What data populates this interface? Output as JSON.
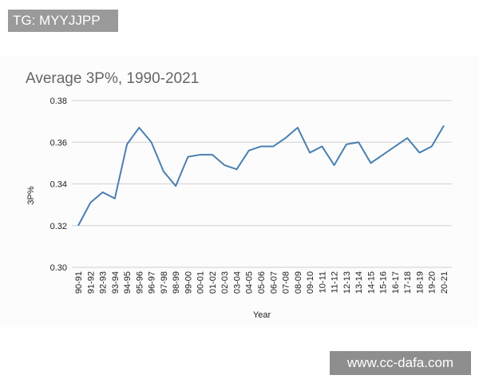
{
  "watermarks": {
    "top_left": "TG: MYYJJPP",
    "bottom_right": "www.cc-dafa.com"
  },
  "colors": {
    "line": "#4a7fb0",
    "grid": "#d0d0d0",
    "title": "#666666"
  },
  "chart_data": {
    "type": "line",
    "title": "Average 3P%, 1990-2021",
    "xlabel": "Year",
    "ylabel": "3P%",
    "ylim": [
      0.3,
      0.38
    ],
    "yticks": [
      "0.30",
      "0.32",
      "0.34",
      "0.36",
      "0.38"
    ],
    "grid": true,
    "categories": [
      "90-91",
      "91-92",
      "92-93",
      "93-94",
      "94-95",
      "95-96",
      "96-97",
      "97-98",
      "98-99",
      "99-00",
      "00-01",
      "01-02",
      "02-03",
      "03-04",
      "04-05",
      "05-06",
      "06-07",
      "07-08",
      "08-09",
      "09-10",
      "10-11",
      "11-12",
      "12-13",
      "13-14",
      "14-15",
      "15-16",
      "16-17",
      "17-18",
      "18-19",
      "19-20",
      "20-21"
    ],
    "series": [
      {
        "name": "3P%",
        "values": [
          0.32,
          0.331,
          0.336,
          0.333,
          0.359,
          0.367,
          0.36,
          0.346,
          0.339,
          0.353,
          0.354,
          0.354,
          0.349,
          0.347,
          0.356,
          0.358,
          0.358,
          0.362,
          0.367,
          0.355,
          0.358,
          0.349,
          0.359,
          0.36,
          0.35,
          0.354,
          0.358,
          0.362,
          0.355,
          0.358,
          0.368
        ]
      }
    ]
  }
}
